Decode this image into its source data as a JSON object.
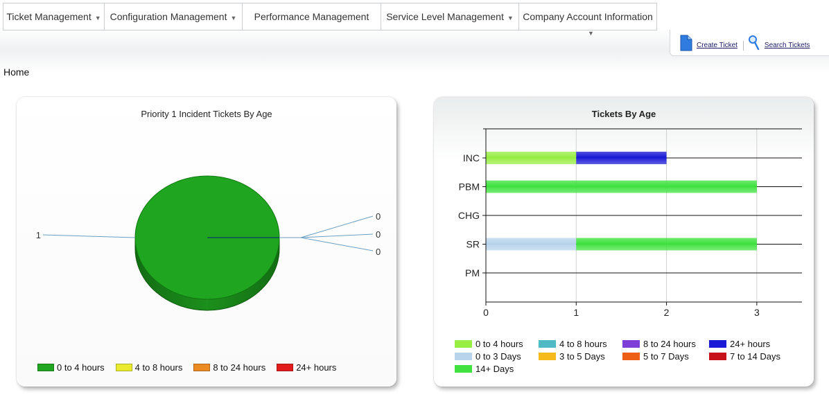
{
  "menu": [
    {
      "label": "Ticket Management",
      "caret": "▼"
    },
    {
      "label": "Configuration Management",
      "caret": "▼"
    },
    {
      "label": "Performance Management",
      "caret": ""
    },
    {
      "label": "Service Level Management",
      "caret": "▼"
    },
    {
      "label": "Company Account Information",
      "caret": "▼"
    }
  ],
  "actions": {
    "create_ticket": "Create Ticket",
    "search_tickets": "Search Tickets"
  },
  "breadcrumb": "Home",
  "charts": [
    {
      "title": "Priority 1 Incident Tickets By Age",
      "colors": [
        "#1fa51f",
        "#eaea2e",
        "#ec8a22",
        "#e21b1b"
      ]
    },
    {
      "title": "Tickets By Age",
      "legend_colors": [
        "#99ee44",
        "#4fb9c4",
        "#7e3fd8",
        "#1a1ad6",
        "#b8d4ec",
        "#f6bb1a",
        "#ec5f14",
        "#c8121a",
        "#3fe23f"
      ]
    }
  ],
  "chart_data": [
    {
      "type": "pie",
      "labels": [
        "0 to 4 hours",
        "4 to 8 hours",
        "8 to 24 hours",
        "24+ hours"
      ],
      "values": [
        1,
        0,
        0,
        0
      ]
    },
    {
      "type": "bar",
      "orientation": "horizontal",
      "stacked": true,
      "categories": [
        "INC",
        "PBM",
        "CHG",
        "SR",
        "PM"
      ],
      "xlim": [
        0,
        3.5
      ],
      "xticks": [
        "0",
        "1",
        "2",
        "3"
      ],
      "series": [
        {
          "name": "0 to 4 hours",
          "values": [
            1,
            0,
            0,
            0,
            0
          ]
        },
        {
          "name": "4 to 8 hours",
          "values": [
            0,
            0,
            0,
            0,
            0
          ]
        },
        {
          "name": "8 to 24 hours",
          "values": [
            0,
            0,
            0,
            0,
            0
          ]
        },
        {
          "name": "24+ hours",
          "values": [
            1,
            0,
            0,
            0,
            0
          ]
        },
        {
          "name": "0 to 3 Days",
          "values": [
            0,
            0,
            0,
            1,
            0
          ]
        },
        {
          "name": "3 to 5 Days",
          "values": [
            0,
            0,
            0,
            0,
            0
          ]
        },
        {
          "name": "5 to 7 Days",
          "values": [
            0,
            0,
            0,
            0,
            0
          ]
        },
        {
          "name": "7 to 14 Days",
          "values": [
            0,
            0,
            0,
            0,
            0
          ]
        },
        {
          "name": "14+ Days",
          "values": [
            0,
            3,
            0,
            2,
            0
          ]
        }
      ]
    }
  ]
}
